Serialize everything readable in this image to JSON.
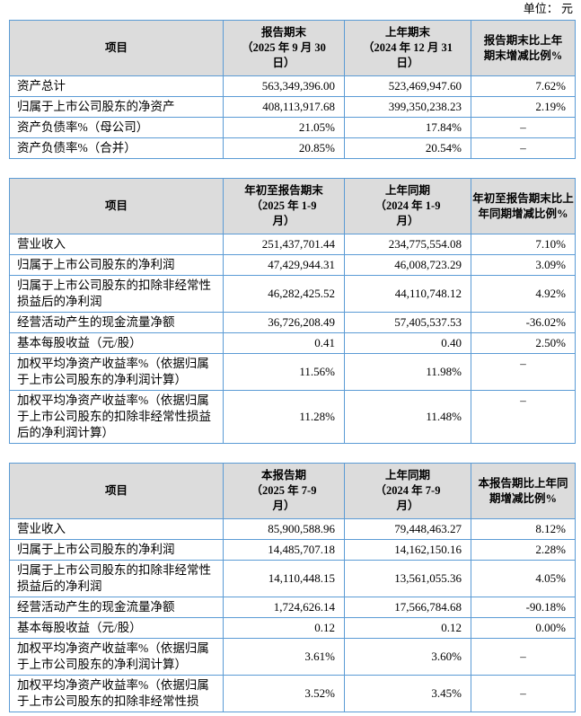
{
  "unit_label": "单位：  元",
  "colors": {
    "border": "#5B9BD5",
    "header_bg": "#DCDCDC",
    "text": "#000000"
  },
  "tables": [
    {
      "title": "period-end-balance-summary",
      "headers": {
        "item": "项目",
        "current": "报告期末\n（2025 年 9 月 30\n日）",
        "prior": "上年期末\n（2024 年 12 月 31\n日）",
        "change": "报告期末比上年\n期末增减比例%"
      },
      "rows": [
        {
          "label": "资产总计",
          "current": "563,349,396.00",
          "prior": "523,469,947.60",
          "change": "7.62%"
        },
        {
          "label": "归属于上市公司股东的净资产",
          "current": "408,113,917.68",
          "prior": "399,350,238.23",
          "change": "2.19%"
        },
        {
          "label": "资产负债率%（母公司）",
          "current": "21.05%",
          "prior": "17.84%",
          "change": "–"
        },
        {
          "label": "资产负债率%（合并）",
          "current": "20.85%",
          "prior": "20.54%",
          "change": "–"
        }
      ]
    },
    {
      "title": "year-to-date-summary",
      "headers": {
        "item": "项目",
        "current": "年初至报告期末\n（2025 年 1-9\n月）",
        "prior": "上年同期\n（2024 年 1-9\n月）",
        "change": "年初至报告期末比上\n年同期增减比例%"
      },
      "rows": [
        {
          "label": "营业收入",
          "current": "251,437,701.44",
          "prior": "234,775,554.08",
          "change": "7.10%"
        },
        {
          "label": "归属于上市公司股东的净利润",
          "current": "47,429,944.31",
          "prior": "46,008,723.29",
          "change": "3.09%"
        },
        {
          "label": "归属于上市公司股东的扣除非经常性损益后的净利润",
          "current": "46,282,425.52",
          "prior": "44,110,748.12",
          "change": "4.92%"
        },
        {
          "label": "经营活动产生的现金流量净额",
          "current": "36,726,208.49",
          "prior": "57,405,537.53",
          "change": "-36.02%"
        },
        {
          "label": "基本每股收益（元/股）",
          "current": "0.41",
          "prior": "0.40",
          "change": "2.50%"
        },
        {
          "label": "加权平均净资产收益率%（依据归属于上市公司股东的净利润计算）",
          "current": "11.56%",
          "prior": "11.98%",
          "change": "–",
          "change_top": true
        },
        {
          "label": "加权平均净资产收益率%（依据归属于上市公司股东的扣除非经常性损益后的净利润计算）",
          "current": "11.28%",
          "prior": "11.48%",
          "change": "–",
          "change_top": true
        }
      ]
    },
    {
      "title": "current-quarter-summary",
      "headers": {
        "item": "项目",
        "current": "本报告期\n（2025 年 7-9\n月）",
        "prior": "上年同期\n（2024 年 7-9\n月）",
        "change": "本报告期比上年同\n期增减比例%"
      },
      "rows": [
        {
          "label": "营业收入",
          "current": "85,900,588.96",
          "prior": "79,448,463.27",
          "change": "8.12%"
        },
        {
          "label": "归属于上市公司股东的净利润",
          "current": "14,485,707.18",
          "prior": "14,162,150.16",
          "change": "2.28%"
        },
        {
          "label": "归属于上市公司股东的扣除非经常性损益后的净利润",
          "current": "14,110,448.15",
          "prior": "13,561,055.36",
          "change": "4.05%"
        },
        {
          "label": "经营活动产生的现金流量净额",
          "current": "1,724,626.14",
          "prior": "17,566,784.68",
          "change": "-90.18%"
        },
        {
          "label": "基本每股收益（元/股）",
          "current": "0.12",
          "prior": "0.12",
          "change": "0.00%"
        },
        {
          "label": "加权平均净资产收益率%（依据归属于上市公司股东的净利润计算）",
          "current": "3.61%",
          "prior": "3.60%",
          "change": "–"
        },
        {
          "label": "加权平均净资产收益率%（依据归属于上市公司股东的扣除非经常性损",
          "current": "3.52%",
          "prior": "3.45%",
          "change": "–"
        }
      ]
    }
  ]
}
